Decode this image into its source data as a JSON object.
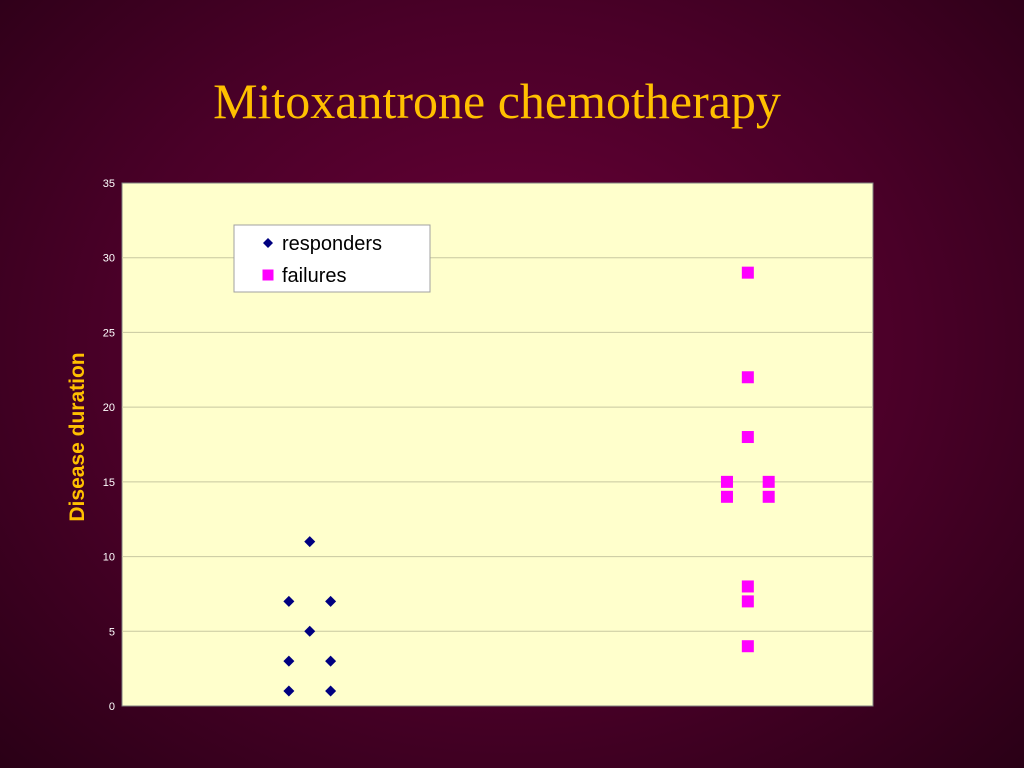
{
  "title": "Mitoxantrone chemotherapy",
  "colors": {
    "title": "#ffc000",
    "plot_bg": "#ffffcc",
    "responders": "#000080",
    "failures": "#ff00ff",
    "gridline": "#c8c8a0"
  },
  "chart_data": {
    "type": "scatter",
    "title": "Mitoxantrone chemotherapy",
    "xlabel": "",
    "ylabel": "Disease duration",
    "ylim": [
      0,
      35
    ],
    "yticks": [
      0,
      5,
      10,
      15,
      20,
      25,
      30,
      35
    ],
    "xlim": [
      0,
      9
    ],
    "grid": true,
    "legend_position": "top-left",
    "series": [
      {
        "name": "responders",
        "marker": "diamond",
        "color": "#000080",
        "points": [
          {
            "x": 2.25,
            "y": 11
          },
          {
            "x": 2.0,
            "y": 7
          },
          {
            "x": 2.5,
            "y": 7
          },
          {
            "x": 2.25,
            "y": 5
          },
          {
            "x": 2.0,
            "y": 3
          },
          {
            "x": 2.5,
            "y": 3
          },
          {
            "x": 2.0,
            "y": 1
          },
          {
            "x": 2.5,
            "y": 1
          }
        ]
      },
      {
        "name": "failures",
        "marker": "square",
        "color": "#ff00ff",
        "points": [
          {
            "x": 7.5,
            "y": 29
          },
          {
            "x": 7.5,
            "y": 22
          },
          {
            "x": 7.5,
            "y": 18
          },
          {
            "x": 7.25,
            "y": 15
          },
          {
            "x": 7.75,
            "y": 15
          },
          {
            "x": 7.25,
            "y": 14
          },
          {
            "x": 7.75,
            "y": 14
          },
          {
            "x": 7.5,
            "y": 8
          },
          {
            "x": 7.5,
            "y": 7
          },
          {
            "x": 7.5,
            "y": 4
          }
        ]
      }
    ]
  }
}
